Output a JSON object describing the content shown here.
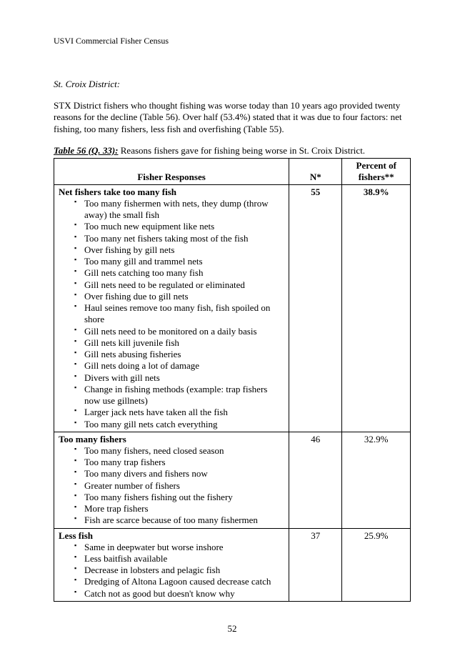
{
  "header": "USVI Commercial Fisher Census",
  "subheading": "St. Croix District:",
  "paragraph": "STX District fishers who thought fishing was worse today than 10 years ago provided twenty reasons for the decline (Table 56). Over half (53.4%) stated that it was due to four factors: net fishing, too many fishers, less fish and overfishing (Table 55).",
  "caption_bold": "Table 56 (Q. 33):",
  "caption_rest": "  Reasons fishers gave for fishing being worse in St. Croix District.",
  "th_resp": "Fisher Responses",
  "th_n": "N*",
  "th_pct_l1": "Percent of",
  "th_pct_l2": "fishers**",
  "rows": [
    {
      "title": "Net fishers take too many fish",
      "n": "55",
      "pct": "38.9%",
      "bold": true,
      "items": [
        "Too many fishermen with nets, they dump (throw away) the small fish",
        "Too much new equipment like nets",
        "Too many net fishers taking most of the fish",
        "Over fishing by gill nets",
        "Too many gill and trammel nets",
        "Gill nets catching too many fish",
        "Gill nets need to be regulated or eliminated",
        "Over fishing due to gill nets",
        "Haul seines remove too many fish, fish spoiled on shore",
        "Gill nets need to be monitored on a daily basis",
        "Gill nets kill juvenile fish",
        "Gill nets abusing fisheries",
        "Gill nets doing a lot of damage",
        "Divers with gill nets",
        "Change in fishing methods (example: trap fishers now use gillnets)",
        "Larger jack nets have taken all the fish",
        "Too many gill nets catch everything"
      ]
    },
    {
      "title": "Too many fishers",
      "n": "46",
      "pct": "32.9%",
      "bold": false,
      "items": [
        "Too many fishers, need closed season",
        "Too many trap fishers",
        "Too many divers and fishers now",
        "Greater number of fishers",
        "Too many fishers fishing out the fishery",
        "More trap fishers",
        "Fish are scarce because of too many fishermen"
      ]
    },
    {
      "title": "Less fish",
      "n": "37",
      "pct": "25.9%",
      "bold": false,
      "items": [
        "Same in deepwater but worse inshore",
        "Less baitfish available",
        "Decrease in lobsters and pelagic fish",
        "Dredging of Altona Lagoon caused decrease catch",
        "Catch not as good but doesn't know why"
      ]
    }
  ],
  "page_number": "52"
}
